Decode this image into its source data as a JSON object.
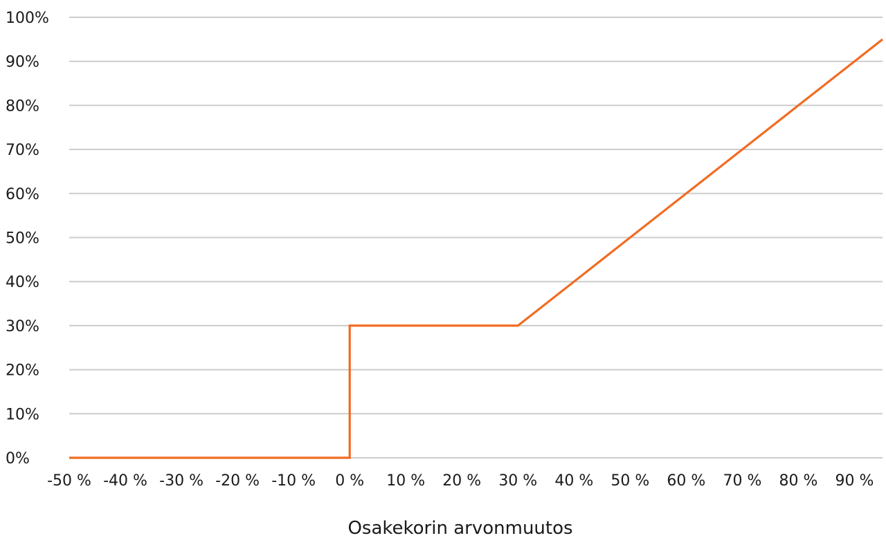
{
  "chart_data": {
    "type": "line",
    "title": "",
    "xlabel": "Osakekorin arvonmuutos",
    "ylabel": "",
    "x_tick_labels": [
      "-50 %",
      "-40 %",
      "-30 %",
      "-20 %",
      "-10 %",
      "0 %",
      "10 %",
      "20 %",
      "30 %",
      "40 %",
      "50 %",
      "60 %",
      "70 %",
      "80 %",
      "90 %"
    ],
    "y_tick_labels": [
      "0%",
      "10%",
      "20%",
      "30%",
      "40%",
      "50%",
      "60%",
      "70%",
      "80%",
      "90%",
      "100%"
    ],
    "xlim": [
      -50,
      95
    ],
    "ylim": [
      0,
      100
    ],
    "grid": true,
    "legend": "none",
    "series": [
      {
        "color": "#F26B22",
        "points": [
          [
            -50,
            0
          ],
          [
            0,
            0
          ],
          [
            0,
            30
          ],
          [
            30,
            30
          ],
          [
            40,
            40
          ],
          [
            50,
            50
          ],
          [
            60,
            60
          ],
          [
            70,
            70
          ],
          [
            80,
            80
          ],
          [
            90,
            90
          ],
          [
            95,
            95
          ]
        ]
      }
    ]
  }
}
